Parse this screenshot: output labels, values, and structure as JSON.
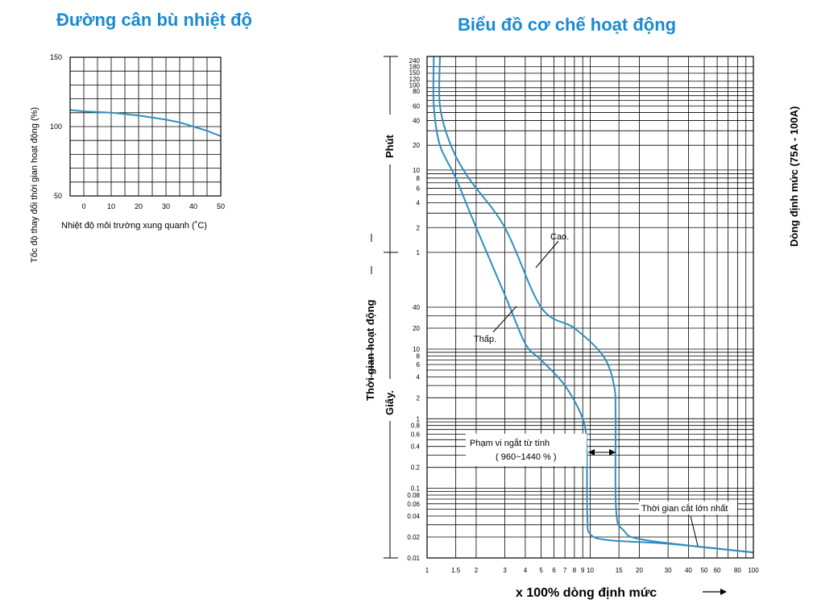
{
  "chart_data": [
    {
      "type": "line",
      "title": "Đường cân bù nhiệt độ",
      "xlabel": "Nhiệt độ môi trường xung quanh (˚C)",
      "ylabel": "Tốc độ thay đổi thời gian hoạt động (%)",
      "xlim": [
        -5,
        50
      ],
      "ylim": [
        50,
        150
      ],
      "x_ticks": [
        0,
        10,
        20,
        30,
        40,
        50
      ],
      "y_ticks": [
        50,
        100,
        150
      ],
      "grid": true,
      "series": [
        {
          "x": [
            -5,
            0,
            10,
            20,
            30,
            35,
            40,
            45,
            50
          ],
          "y": [
            112,
            111,
            110,
            108,
            105,
            103,
            100,
            97,
            93
          ]
        }
      ]
    },
    {
      "type": "line",
      "title": "Biểu đồ cơ chế hoạt động",
      "xlabel": "x 100% dòng định mức",
      "ylabel": "Thời gian hoạt động",
      "ylabel_minutes": "Phút",
      "ylabel_seconds": "Giây.",
      "right_label": "Dòng định mức (75A - 100A)",
      "x_scale": "log",
      "y_scale": "log",
      "xlim": [
        1,
        100
      ],
      "x_ticks": [
        1,
        1.5,
        2,
        3,
        4,
        5,
        6,
        7,
        8,
        9,
        10,
        15,
        20,
        30,
        40,
        50,
        60,
        80,
        100
      ],
      "y_ticks_minutes": [
        240,
        180,
        150,
        120,
        100,
        80,
        60,
        40,
        20,
        10,
        8,
        6,
        4,
        2,
        1
      ],
      "y_ticks_seconds": [
        40,
        20,
        10,
        8,
        6,
        4,
        2,
        1,
        0.8,
        0.6,
        0.4,
        0.2,
        0.1,
        0.08,
        0.06,
        0.04,
        0.02,
        0.01
      ],
      "grid": true,
      "series": [
        {
          "name": "Thấp.",
          "points": [
            [
              1.1,
              "240 min"
            ],
            [
              1.1,
              "60 min"
            ],
            [
              1.2,
              "20 min"
            ],
            [
              1.5,
              "8 min"
            ],
            [
              2,
              "2 min"
            ],
            [
              3,
              "60 s"
            ],
            [
              4,
              "12 s"
            ],
            [
              5,
              "7 s"
            ],
            [
              7,
              "3 s"
            ],
            [
              9,
              "1 s"
            ],
            [
              9.5,
              "0.4 s"
            ],
            [
              9.6,
              "0.04 s"
            ],
            [
              10,
              "0.022 s"
            ],
            [
              13,
              "0.018 s"
            ],
            [
              30,
              "0.016 s"
            ],
            [
              100,
              "0.012 s"
            ]
          ]
        },
        {
          "name": "Cao.",
          "points": [
            [
              1.2,
              "240 min"
            ],
            [
              1.2,
              "60 min"
            ],
            [
              1.4,
              "20 min"
            ],
            [
              1.8,
              "8 min"
            ],
            [
              3,
              "2 min"
            ],
            [
              5,
              "40 s"
            ],
            [
              8,
              "20 s"
            ],
            [
              12,
              "8 s"
            ],
            [
              14,
              "3 s"
            ],
            [
              14.3,
              "1 s"
            ],
            [
              14.4,
              "0.05 s"
            ],
            [
              16,
              "0.025 s"
            ],
            [
              22,
              "0.018 s"
            ],
            [
              100,
              "0.012 s"
            ]
          ]
        }
      ],
      "annotations": {
        "high": "Cao.",
        "low": "Thấp.",
        "magnetic_line1": "Phạm vi ngắt từ tính",
        "magnetic_line2": "( 960~1440 % )",
        "max_cut": "Thời gian cắt lớn nhất"
      }
    }
  ],
  "colors": {
    "title": "#1a8bd0",
    "curve": "#2e8fbf",
    "grid": "#000000"
  }
}
